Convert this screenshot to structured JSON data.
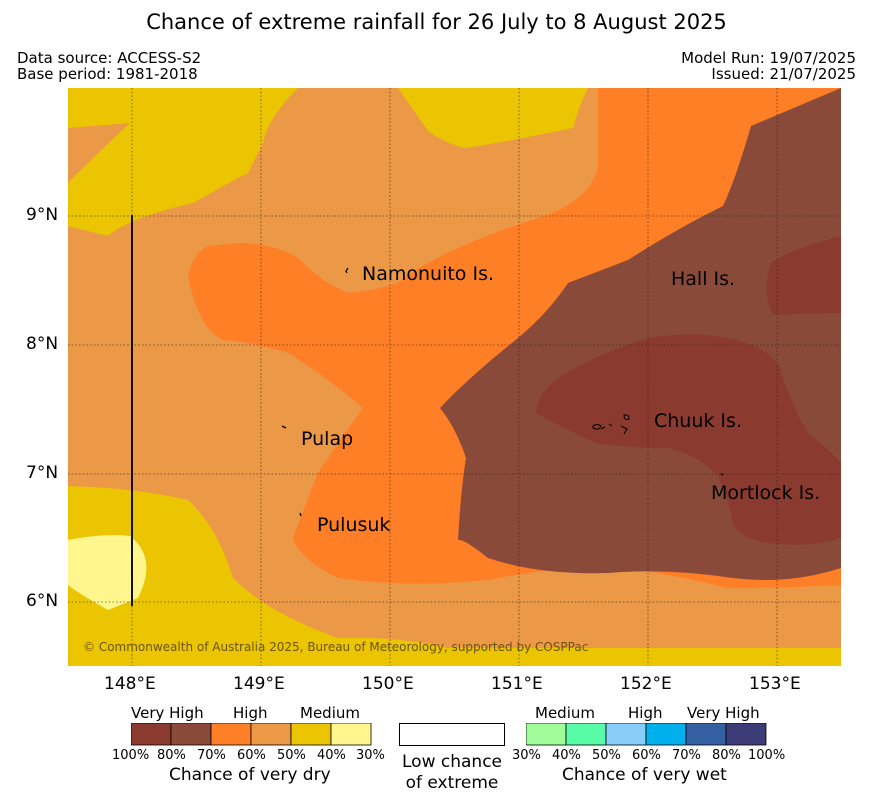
{
  "title": "Chance of extreme rainfall for 26 July to 8 August 2025",
  "header": {
    "data_source": "Data source: ACCESS-S2",
    "base_period": "Base period: 1981-2018",
    "model_run": "Model Run: 19/07/2025",
    "issued": "Issued: 21/07/2025"
  },
  "map": {
    "lat_labels": [
      "9°N",
      "8°N",
      "7°N",
      "6°N"
    ],
    "lon_labels": [
      "148°E",
      "149°E",
      "150°E",
      "151°E",
      "152°E",
      "153°E"
    ],
    "places": [
      "Namonuito Is.",
      "Hall Is.",
      "Pulap",
      "Chuuk Is.",
      "Mortlock Is.",
      "Pulusuk"
    ],
    "copyright": "© Commonwealth of Australia 2025, Bureau of Meteorology, supported by COSPPac",
    "colors": {
      "dry_100_80": "#8b3a30",
      "dry_80_70": "#8a4a3a",
      "dry_70_60": "#fe7f26",
      "dry_60_50": "#eb9847",
      "dry_50_40": "#ecc502",
      "dry_40_30": "#fff68e"
    }
  },
  "legend": {
    "dry": {
      "levels": [
        "Very High",
        "High",
        "Medium"
      ],
      "ticks": [
        "100%",
        "80%",
        "70%",
        "60%",
        "50%",
        "40%",
        "30%"
      ],
      "caption": "Chance of very dry",
      "colors": [
        "#8b3a30",
        "#8a4a3a",
        "#fe7f26",
        "#eb9847",
        "#ecc502",
        "#fff68e"
      ]
    },
    "neutral": {
      "caption_line1": "Low chance",
      "caption_line2": "of extreme"
    },
    "wet": {
      "levels": [
        "Medium",
        "High",
        "Very High"
      ],
      "ticks": [
        "30%",
        "40%",
        "50%",
        "60%",
        "70%",
        "80%",
        "100%"
      ],
      "caption": "Chance of very wet",
      "colors": [
        "#9ffc99",
        "#58fba6",
        "#88ccf8",
        "#00b0ed",
        "#3561a3",
        "#3c3b77"
      ]
    }
  }
}
